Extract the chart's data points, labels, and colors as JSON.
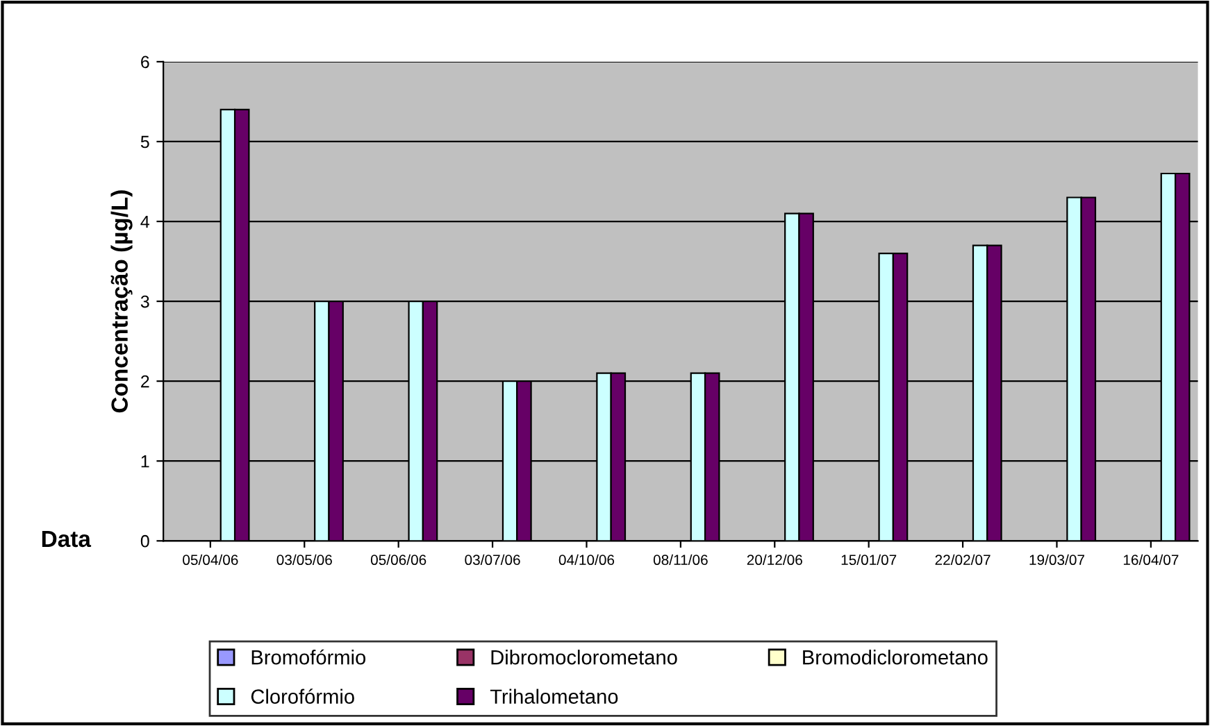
{
  "chart_data": {
    "type": "bar",
    "xlabel": "Data",
    "ylabel": "Concentração (µg/L)",
    "categories": [
      "05/04/06",
      "03/05/06",
      "05/06/06",
      "03/07/06",
      "04/10/06",
      "08/11/06",
      "20/12/06",
      "15/01/07",
      "22/02/07",
      "19/03/07",
      "16/04/07"
    ],
    "series": [
      {
        "name": "Bromofórmio",
        "color": "#9999ff",
        "values": [
          null,
          null,
          null,
          null,
          null,
          null,
          null,
          null,
          null,
          null,
          null
        ]
      },
      {
        "name": "Dibromoclorometano",
        "color": "#993366",
        "values": [
          null,
          null,
          null,
          null,
          null,
          null,
          null,
          null,
          null,
          null,
          null
        ]
      },
      {
        "name": "Bromodiclorometano",
        "color": "#ffffcc",
        "values": [
          null,
          null,
          null,
          null,
          null,
          null,
          null,
          null,
          null,
          null,
          null
        ]
      },
      {
        "name": "Clorofórmio",
        "color": "#ccffff",
        "values": [
          5.4,
          3,
          3,
          2,
          2.1,
          2.1,
          4.1,
          3.6,
          3.7,
          4.3,
          4.6
        ]
      },
      {
        "name": "Trihalometano",
        "color": "#660066",
        "values": [
          5.4,
          3,
          3,
          2,
          2.1,
          2.1,
          4.1,
          3.6,
          3.7,
          4.3,
          4.6
        ]
      }
    ],
    "ylim": [
      0,
      6
    ],
    "yticks": [
      0,
      1,
      2,
      3,
      4,
      5,
      6
    ],
    "grid": "y",
    "legend": "bottom"
  }
}
